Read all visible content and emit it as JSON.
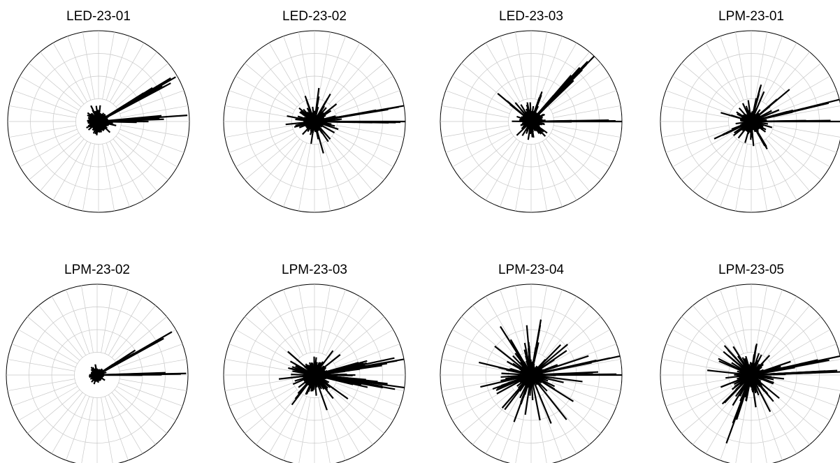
{
  "chart_data": [
    {
      "type": "polar-histogram",
      "title": "LED-23-01",
      "rmax": 1.0,
      "grid_rings": [
        0.25,
        0.5,
        0.75,
        1.0
      ],
      "angle_grid_deg": 10,
      "grid": true,
      "peaks": [
        {
          "angle_deg": 30,
          "r": 0.98
        },
        {
          "angle_deg": 28,
          "r": 0.9
        },
        {
          "angle_deg": 32,
          "r": 0.7
        },
        {
          "angle_deg": 4,
          "r": 0.98
        },
        {
          "angle_deg": 2,
          "r": 0.72
        },
        {
          "angle_deg": 0,
          "r": 0.55
        }
      ],
      "core": 0.1,
      "spread": 0.05,
      "seed": 11
    },
    {
      "type": "polar-histogram",
      "title": "LED-23-02",
      "rmax": 1.0,
      "grid_rings": [
        0.25,
        0.5,
        0.75,
        1.0
      ],
      "angle_grid_deg": 10,
      "grid": true,
      "peaks": [
        {
          "angle_deg": 10,
          "r": 1.0
        },
        {
          "angle_deg": 0,
          "r": 1.0
        },
        {
          "angle_deg": 60,
          "r": 0.35
        },
        {
          "angle_deg": 110,
          "r": 0.3
        },
        {
          "angle_deg": 80,
          "r": 0.28
        }
      ],
      "core": 0.1,
      "spread": 0.12,
      "seed": 22
    },
    {
      "type": "polar-histogram",
      "title": "LED-23-03",
      "rmax": 1.0,
      "grid_rings": [
        0.25,
        0.5,
        0.75,
        1.0
      ],
      "angle_grid_deg": 10,
      "grid": true,
      "peaks": [
        {
          "angle_deg": 46,
          "r": 1.0
        },
        {
          "angle_deg": 48,
          "r": 0.8
        },
        {
          "angle_deg": 44,
          "r": 0.65
        },
        {
          "angle_deg": 0,
          "r": 1.0
        },
        {
          "angle_deg": 140,
          "r": 0.48
        },
        {
          "angle_deg": 70,
          "r": 0.35
        }
      ],
      "core": 0.1,
      "spread": 0.1,
      "seed": 33
    },
    {
      "type": "polar-histogram",
      "title": "LPM-23-01",
      "rmax": 1.0,
      "grid_rings": [
        0.25,
        0.5,
        0.75,
        1.0
      ],
      "angle_grid_deg": 10,
      "grid": true,
      "peaks": [
        {
          "angle_deg": 14,
          "r": 1.0
        },
        {
          "angle_deg": 0,
          "r": 1.0
        },
        {
          "angle_deg": 40,
          "r": 0.55
        },
        {
          "angle_deg": 205,
          "r": 0.45
        },
        {
          "angle_deg": 75,
          "r": 0.42
        },
        {
          "angle_deg": 300,
          "r": 0.35
        }
      ],
      "core": 0.1,
      "spread": 0.14,
      "seed": 44
    },
    {
      "type": "polar-histogram",
      "title": "LPM-23-02",
      "rmax": 1.0,
      "grid_rings": [
        0.25,
        0.5,
        0.75,
        1.0
      ],
      "angle_grid_deg": 10,
      "grid": true,
      "peaks": [
        {
          "angle_deg": 30,
          "r": 0.95
        },
        {
          "angle_deg": 33,
          "r": 0.5
        },
        {
          "angle_deg": 1,
          "r": 0.98
        },
        {
          "angle_deg": 100,
          "r": 0.12
        }
      ],
      "core": 0.06,
      "spread": 0.03,
      "seed": 55
    },
    {
      "type": "polar-histogram",
      "title": "LPM-23-03",
      "rmax": 1.0,
      "grid_rings": [
        0.25,
        0.5,
        0.75,
        1.0
      ],
      "angle_grid_deg": 10,
      "grid": true,
      "peaks": [
        {
          "angle_deg": 10,
          "r": 1.0
        },
        {
          "angle_deg": 12,
          "r": 0.9
        },
        {
          "angle_deg": 8,
          "r": 0.75
        },
        {
          "angle_deg": 15,
          "r": 0.6
        },
        {
          "angle_deg": -8,
          "r": 1.0
        },
        {
          "angle_deg": -10,
          "r": 0.9
        },
        {
          "angle_deg": -6,
          "r": 0.7
        },
        {
          "angle_deg": -13,
          "r": 0.6
        },
        {
          "angle_deg": 0,
          "r": 0.45
        },
        {
          "angle_deg": 165,
          "r": 0.3
        }
      ],
      "core": 0.12,
      "spread": 0.18,
      "seed": 66
    },
    {
      "type": "polar-histogram",
      "title": "LPM-23-04",
      "rmax": 1.0,
      "grid_rings": [
        0.25,
        0.5,
        0.75,
        1.0
      ],
      "angle_grid_deg": 10,
      "grid": true,
      "peaks": [
        {
          "angle_deg": 12,
          "r": 1.0
        },
        {
          "angle_deg": 0,
          "r": 1.0
        },
        {
          "angle_deg": 80,
          "r": 0.62
        },
        {
          "angle_deg": 95,
          "r": 0.55
        },
        {
          "angle_deg": 250,
          "r": 0.55
        },
        {
          "angle_deg": 200,
          "r": 0.45
        },
        {
          "angle_deg": 120,
          "r": 0.45
        }
      ],
      "core": 0.12,
      "spread": 0.28,
      "seed": 77
    },
    {
      "type": "polar-histogram",
      "title": "LPM-23-05",
      "rmax": 1.0,
      "grid_rings": [
        0.25,
        0.5,
        0.75,
        1.0
      ],
      "angle_grid_deg": 10,
      "grid": true,
      "peaks": [
        {
          "angle_deg": 12,
          "r": 1.0
        },
        {
          "angle_deg": 2,
          "r": 1.0
        },
        {
          "angle_deg": 250,
          "r": 0.8
        },
        {
          "angle_deg": 225,
          "r": 0.45
        },
        {
          "angle_deg": 140,
          "r": 0.4
        },
        {
          "angle_deg": 80,
          "r": 0.35
        },
        {
          "angle_deg": 310,
          "r": 0.38
        }
      ],
      "core": 0.12,
      "spread": 0.22,
      "seed": 88
    }
  ]
}
